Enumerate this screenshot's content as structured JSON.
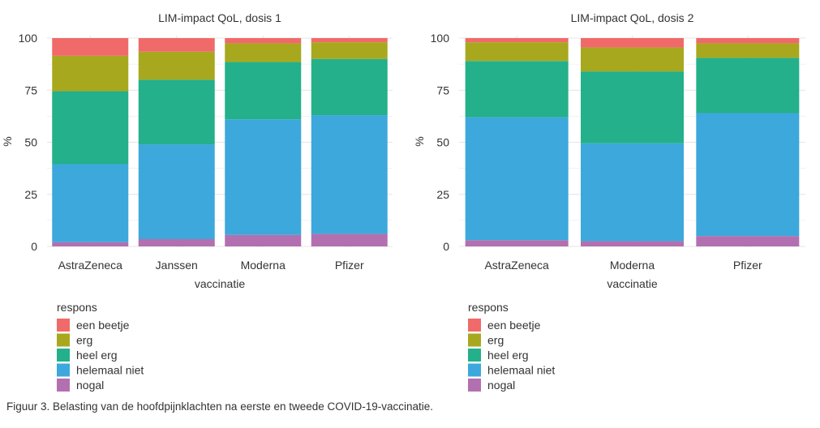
{
  "caption": "Figuur 3. Belasting van de hoofdpijnklachten na eerste en tweede COVID-19-vaccinatie.",
  "chart_data": [
    {
      "type": "bar",
      "stacked": true,
      "title": "LIM-impact QoL, dosis 1",
      "xlabel": "vaccinatie",
      "ylabel": "%",
      "ylim": [
        0,
        100
      ],
      "yticks": [
        0,
        25,
        50,
        75,
        100
      ],
      "grid": true,
      "legend_title": "respons",
      "legend_position": "bottom-left",
      "categories": [
        "AstraZeneca",
        "Janssen",
        "Moderna",
        "Pfizer"
      ],
      "series": [
        {
          "name": "nogal",
          "color": "#b370b0",
          "values": [
            2,
            3.5,
            5.5,
            6
          ]
        },
        {
          "name": "helemaal niet",
          "color": "#3da8db",
          "values": [
            37.5,
            45.5,
            55.5,
            57
          ]
        },
        {
          "name": "heel erg",
          "color": "#23b08b",
          "values": [
            35,
            31,
            27.5,
            27
          ]
        },
        {
          "name": "erg",
          "color": "#a8a81e",
          "values": [
            17,
            13.5,
            9,
            8
          ]
        },
        {
          "name": "een beetje",
          "color": "#f06a6a",
          "values": [
            8.5,
            6.5,
            2.5,
            2
          ]
        }
      ],
      "legend_order": [
        "een beetje",
        "erg",
        "heel erg",
        "helemaal niet",
        "nogal"
      ]
    },
    {
      "type": "bar",
      "stacked": true,
      "title": "LIM-impact QoL, dosis 2",
      "xlabel": "vaccinatie",
      "ylabel": "%",
      "ylim": [
        0,
        100
      ],
      "yticks": [
        0,
        25,
        50,
        75,
        100
      ],
      "grid": true,
      "legend_title": "respons",
      "legend_position": "bottom-left",
      "categories": [
        "AstraZeneca",
        "Moderna",
        "Pfizer"
      ],
      "series": [
        {
          "name": "nogal",
          "color": "#b370b0",
          "values": [
            3,
            2.5,
            5
          ]
        },
        {
          "name": "helemaal niet",
          "color": "#3da8db",
          "values": [
            59,
            47,
            59
          ]
        },
        {
          "name": "heel erg",
          "color": "#23b08b",
          "values": [
            27,
            34.5,
            26.5
          ]
        },
        {
          "name": "erg",
          "color": "#a8a81e",
          "values": [
            9,
            11.5,
            7
          ]
        },
        {
          "name": "een beetje",
          "color": "#f06a6a",
          "values": [
            2,
            4.5,
            2.5
          ]
        }
      ],
      "legend_order": [
        "een beetje",
        "erg",
        "heel erg",
        "helemaal niet",
        "nogal"
      ]
    }
  ]
}
